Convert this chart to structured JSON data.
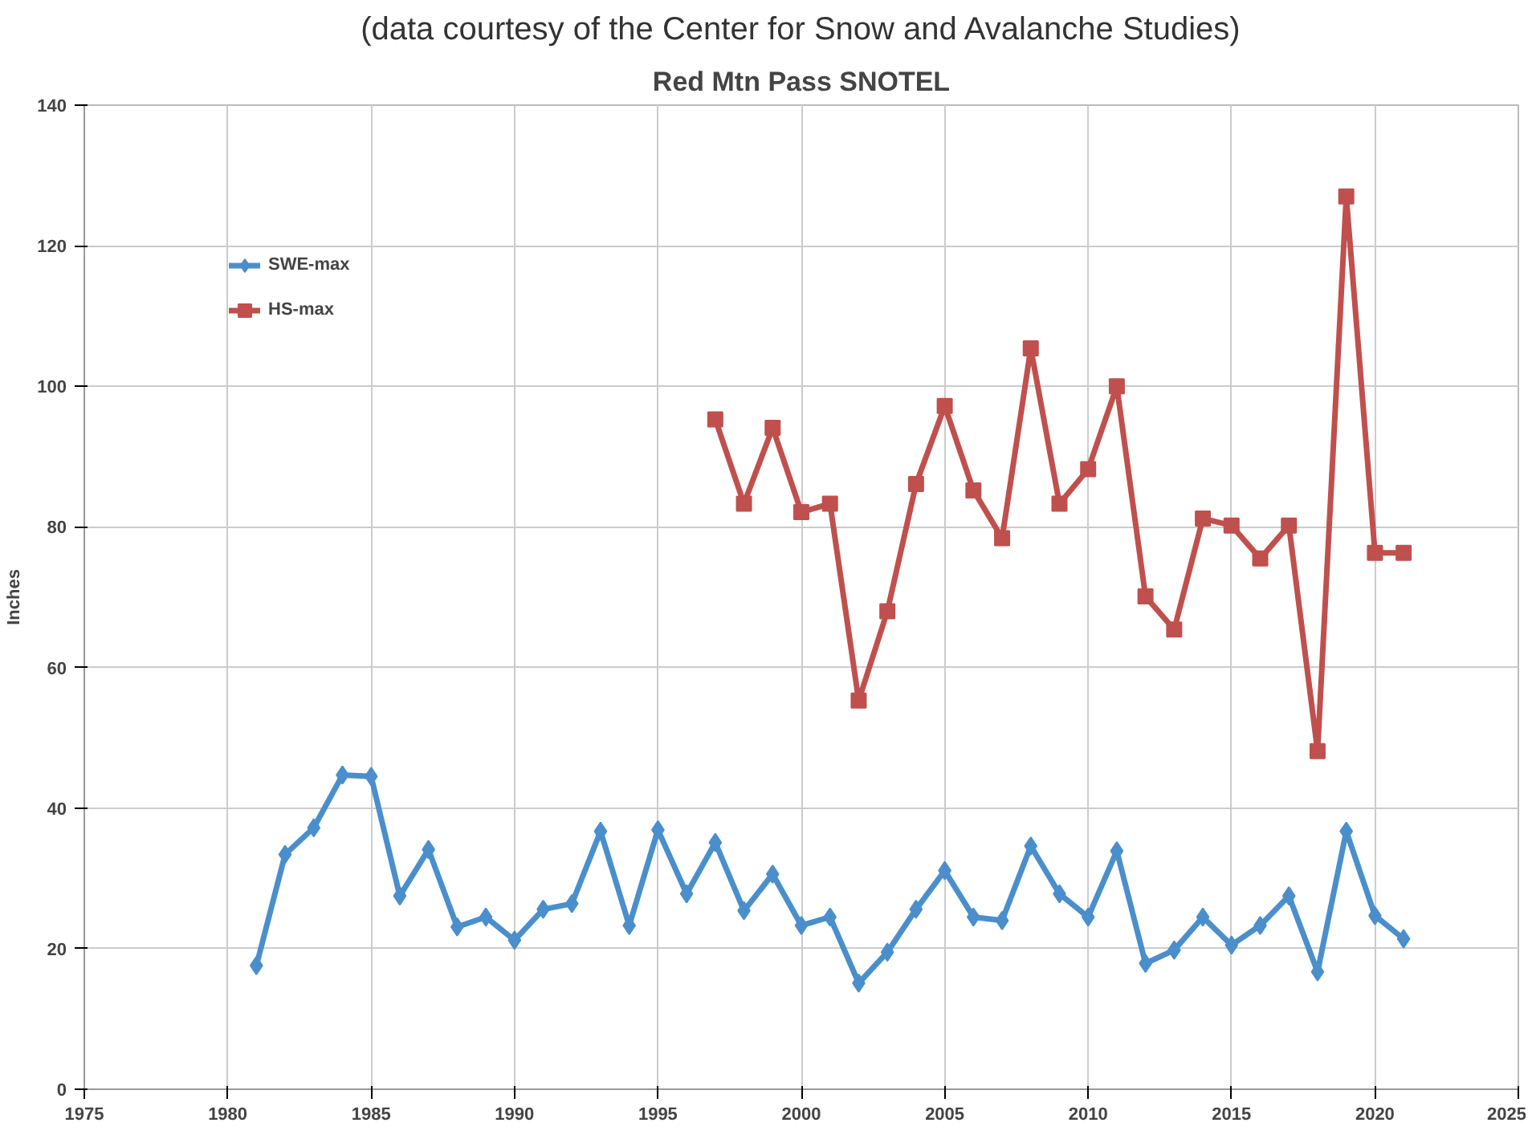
{
  "chart_data": {
    "type": "line",
    "title": "Red Mtn Pass SNOTEL",
    "subtitle": "(data courtesy of the Center for Snow and Avalanche Studies)",
    "ylabel": "Inches",
    "xlim": [
      1975,
      2025
    ],
    "xticks": [
      1975,
      1980,
      1985,
      1990,
      1995,
      2000,
      2005,
      2010,
      2015,
      2020,
      2025
    ],
    "ylim": [
      0,
      140
    ],
    "yticks": [
      0,
      20,
      40,
      60,
      80,
      100,
      120,
      140
    ],
    "grid": true,
    "legend": "top left",
    "series": [
      {
        "name": "SWE-max",
        "color": "#4a8fcc",
        "marker": "diamond",
        "x": [
          1981,
          1982,
          1983,
          1984,
          1985,
          1986,
          1987,
          1988,
          1989,
          1990,
          1991,
          1992,
          1993,
          1994,
          1995,
          1996,
          1997,
          1998,
          1999,
          2000,
          2001,
          2002,
          2003,
          2004,
          2005,
          2006,
          2007,
          2008,
          2009,
          2010,
          2011,
          2012,
          2013,
          2014,
          2015,
          2016,
          2017,
          2018,
          2019,
          2020,
          2021
        ],
        "values": [
          17.6,
          33.4,
          37.2,
          44.7,
          44.5,
          27.5,
          34.1,
          23.1,
          24.5,
          21.2,
          25.6,
          26.4,
          36.7,
          23.3,
          36.9,
          27.8,
          35.1,
          25.4,
          30.6,
          23.3,
          24.5,
          15.1,
          19.5,
          25.6,
          31.1,
          24.5,
          24.0,
          34.6,
          27.8,
          24.5,
          33.9,
          17.9,
          19.8,
          24.5,
          20.5,
          23.3,
          27.5,
          16.7,
          36.7,
          24.7,
          21.4
        ]
      },
      {
        "name": "HS-max",
        "color": "#c0504d",
        "marker": "square",
        "x": [
          1997,
          1998,
          1999,
          2000,
          2001,
          2002,
          2003,
          2004,
          2005,
          2006,
          2007,
          2008,
          2009,
          2010,
          2011,
          2012,
          2013,
          2014,
          2015,
          2016,
          2017,
          2018,
          2019,
          2020,
          2021
        ],
        "values": [
          95.3,
          83.3,
          94.1,
          82.1,
          83.3,
          55.3,
          68.0,
          86.1,
          97.2,
          85.2,
          78.4,
          105.4,
          83.3,
          88.2,
          100.0,
          70.1,
          65.4,
          81.2,
          80.2,
          75.5,
          80.2,
          48.1,
          127.0,
          76.3,
          76.3
        ]
      }
    ]
  }
}
